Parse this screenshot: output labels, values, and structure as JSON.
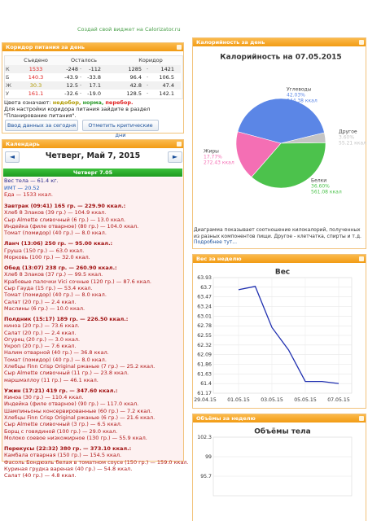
{
  "widget_link": "Создай свой виджет на Calorizator.ru",
  "corridor": {
    "title": "Коридор питания за день",
    "columns": [
      "Съедено",
      "Осталось",
      "Коридор"
    ],
    "separator": "·",
    "rows": [
      {
        "label": "К",
        "eaten": "1533",
        "color": "#e02020",
        "left": [
          "-248",
          "-112"
        ],
        "range": [
          "1285",
          "1421"
        ]
      },
      {
        "label": "Б",
        "eaten": "140.3",
        "color": "#e02020",
        "left": [
          "-43.9",
          "-33.8"
        ],
        "range": [
          "96.4",
          "106.5"
        ]
      },
      {
        "label": "Ж",
        "eaten": "30.3",
        "color": "#b09a00",
        "left": [
          "12.5",
          "17.1"
        ],
        "range": [
          "42.8",
          "47.4"
        ]
      },
      {
        "label": "У",
        "eaten": "161.1",
        "color": "#e02020",
        "left": [
          "-32.6",
          "-19.0"
        ],
        "range": [
          "128.5",
          "142.1"
        ]
      }
    ],
    "legend": {
      "text": "Цвета означают:",
      "items": [
        {
          "text": "недобор,",
          "color": "#b09a00"
        },
        {
          "text": "норма,",
          "color": "#2a9a2a"
        },
        {
          "text": "перебор.",
          "color": "#e02020"
        }
      ]
    },
    "note": "Для настройки коридора питания зайдите в раздел \"Планирование питания\".",
    "buttons": [
      "Ввод данных за сегодня",
      "Отметить критические дни"
    ]
  },
  "calendar": {
    "title": "Календарь",
    "prev": "◄",
    "next": "►",
    "date": "Четверг, Май 7, 2015",
    "day": "Четверг 7.05",
    "stats": [
      "Вес тела — 61.4 кг.",
      "ИМТ — 20.52",
      "Еда — 1533 ккал."
    ],
    "meals": [
      {
        "title": "Завтрак (09:41) 165 гр. — 229.90 ккал.:",
        "items": [
          "Хлеб 8 Злаков (39 гр.) — 104.9 ккал.",
          "Сыр Almette сливочный (6 гр.) — 13.0 ккал.",
          "Индейка (филе отварное) (80 гр.) — 104.0 ккал.",
          "Томат (помидор) (40 гр.) — 8.0 ккал."
        ]
      },
      {
        "title": "Ланч (13:06) 250 гр. — 95.00 ккал.:",
        "items": [
          "Груша (150 гр.) — 63.0 ккал.",
          "Морковь (100 гр.) — 32.0 ккал."
        ]
      },
      {
        "title": "Обед (13:07) 238 гр. — 260.90 ккал.:",
        "items": [
          "Хлеб 8 Злаков (37 гр.) — 99.5 ккал.",
          "Крабовые палочки Vici сочные (120 гр.) — 87.6 ккал.",
          "Сыр Гауда (15 гр.) — 53.4 ккал.",
          "Томат (помидор) (40 гр.) — 8.0 ккал.",
          "Салат (20 гр.) — 2.4 ккал.",
          "Маслины (6 гр.) — 10.0 ккал."
        ]
      },
      {
        "title": "Полдник (15:17) 189 гр. — 226.50 ккал.:",
        "items": [
          "киноа (20 гр.) — 73.6 ккал.",
          "Салат (20 гр.) — 2.4 ккал.",
          "Огурец (20 гр.) — 3.0 ккал.",
          "Укроп (20 гр.) — 7.6 ккал.",
          "Налим отварной (40 гр.) — 36.8 ккал.",
          "Томат (помидор) (40 гр.) — 8.0 ккал.",
          "Хлебцы Finn Crisp Original ржаные (7 гр.) — 25.2 ккал.",
          "Сыр Almette сливочный (11 гр.) — 23.8 ккал.",
          "маршмэллоу (11 гр.) — 46.1 ккал."
        ]
      },
      {
        "title": "Ужин (17:21) 419 гр. — 347.60 ккал.:",
        "items": [
          "Киноа (30 гр.) — 110.4 ккал.",
          "Индейка (филе отварное) (90 гр.) — 117.0 ккал.",
          "Шампиньоны консервированные (60 гр.) — 7.2 ккал.",
          "Хлебцы Finn Crisp Original ржаные (6 гр.) — 21.6 ккал.",
          "Сыр Almette сливочный (3 гр.) — 6.5 ккал.",
          "Борщ с говядиной (100 гр.) — 29.0 ккал.",
          "Молоко соевое низкожирное (130 гр.) — 55.9 ккал."
        ]
      },
      {
        "title": "Перекусы (22:32) 380 гр. — 373.10 ккал.:",
        "items": [
          "Камбала отварная (150 гр.) — 154.5 ккал.",
          "Фасоль Бондюэль белая в томатном соусе (150 гр.) — 159.0 ккал.",
          "Куриная грудка вареная (40 гр.) — 54.8 ккал.",
          "Салат (40 гр.) — 4.8 ккал."
        ]
      }
    ]
  },
  "chart_data": [
    {
      "type": "pie",
      "panel": "Калорийность за день",
      "title": "Калорийность на 07.05.2015",
      "categories": [
        "Углеводы",
        "Другое",
        "Белки",
        "Жиры"
      ],
      "values": [
        42.03,
        3.6,
        36.6,
        17.77
      ],
      "value_labels": [
        "42.03%",
        "3.60%",
        "36.60%",
        "17.77%"
      ],
      "energy_labels": [
        "644.38 ккал",
        "55.21 ккал",
        "561.08 ккал",
        "272.43 ккал"
      ],
      "colors": [
        "#5b86e6",
        "#c4c4c4",
        "#4cc24c",
        "#f46fb4"
      ],
      "note": "Диаграмма показывает соотношение килокалорий, полученных из разных компонентов пищи. Другое - клетчатка, спирты и т.д.",
      "link": "Подробнее тут..."
    },
    {
      "type": "line",
      "panel": "Вес за неделю",
      "title": "Вес",
      "categories": [
        "29.04.15",
        null,
        "01.05.15",
        null,
        "03.05.15",
        null,
        "05.05.15",
        null,
        "07.05.15"
      ],
      "values": [
        null,
        null,
        63.64,
        63.72,
        62.74,
        62.2,
        61.45,
        61.45,
        61.4
      ],
      "color": "#2030b0",
      "ylim": [
        61.17,
        63.93
      ],
      "yticks": [
        61.17,
        61.4,
        61.63,
        61.86,
        62.09,
        62.32,
        62.55,
        62.78,
        63.01,
        63.24,
        63.47,
        63.7,
        63.93
      ],
      "grid": true
    },
    {
      "type": "line",
      "panel": "Объёмы за неделю",
      "title": "Объёмы тела",
      "ylim": [
        92.4,
        102.3
      ],
      "yticks": [
        95.7,
        99,
        102.3
      ],
      "grid": true
    }
  ]
}
